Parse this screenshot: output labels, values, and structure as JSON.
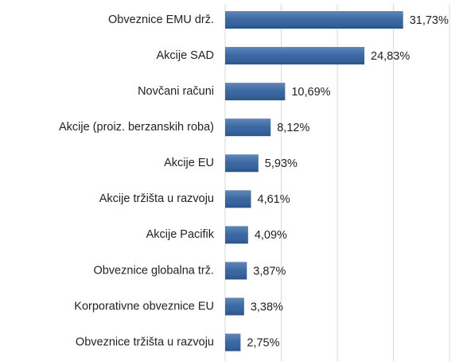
{
  "chart_data": {
    "type": "barh",
    "categories": [
      "Obveznice EMU drž.",
      "Akcije SAD",
      "Novčani računi",
      "Akcije (proiz. berzanskih roba)",
      "Akcije EU",
      "Akcije tržišta u razvoju",
      "Akcije Pacifik",
      "Obveznice globalna trž.",
      "Korporativne obveznice EU",
      "Obveznice tržišta u razvoju"
    ],
    "values": [
      31.73,
      24.83,
      10.69,
      8.12,
      5.93,
      4.61,
      4.09,
      3.87,
      3.38,
      2.75
    ],
    "value_labels": [
      "31,73%",
      "24,83%",
      "10,69%",
      "8,12%",
      "5,93%",
      "4,61%",
      "4,09%",
      "3,87%",
      "3,38%",
      "2,75%"
    ],
    "color": "#2f5f9e",
    "xlim": [
      0,
      40
    ],
    "xticks": [
      0,
      10,
      20,
      30,
      40
    ],
    "grid": true
  }
}
